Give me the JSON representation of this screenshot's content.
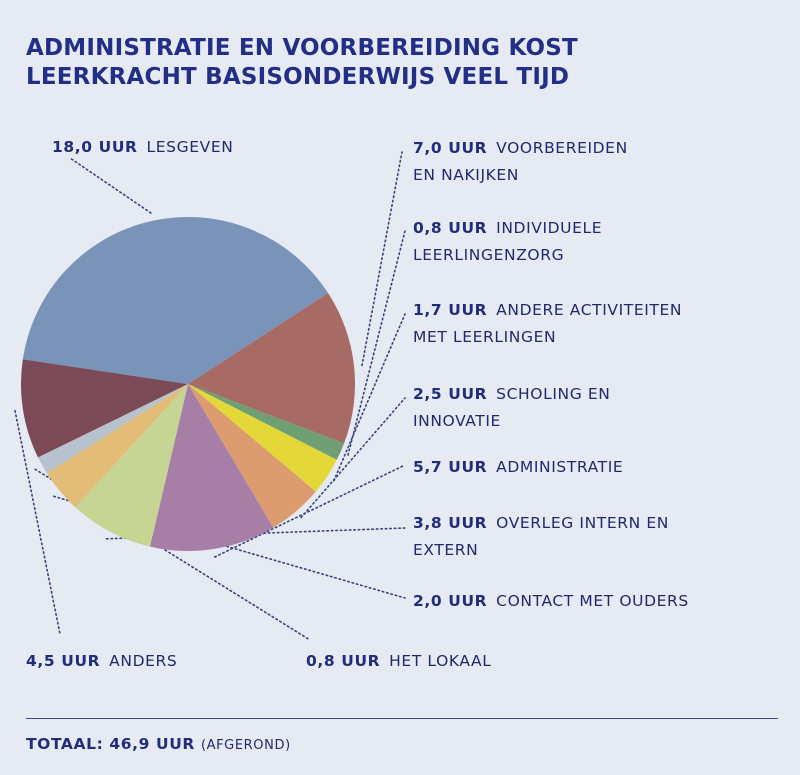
{
  "title": {
    "line1": "ADMINISTRATIE EN VOORBEREIDING KOST",
    "line2": "LEERKRACHT BASISONDERWIJS VEEL TIJD"
  },
  "chart_data": {
    "type": "pie",
    "unit": "UUR",
    "slices": [
      {
        "value_text": "7,0 UUR",
        "label": [
          "VOORBEREIDEN",
          "EN NAKIJKEN"
        ],
        "value": 7.0,
        "color": "#a86a65"
      },
      {
        "value_text": "0,8 UUR",
        "label": [
          "INDIVIDUELE",
          "LEERLINGENZORG"
        ],
        "value": 0.8,
        "color": "#6f9f72"
      },
      {
        "value_text": "1,7 UUR",
        "label": [
          "ANDERE ACTIVITEITEN",
          "MET LEERLINGEN"
        ],
        "value": 1.7,
        "color": "#e4d838"
      },
      {
        "value_text": "2,5 UUR",
        "label": [
          "SCHOLING EN",
          "INNOVATIE"
        ],
        "value": 2.5,
        "color": "#dc9c70"
      },
      {
        "value_text": "5,7 UUR",
        "label": [
          "ADMINISTRATIE"
        ],
        "value": 5.7,
        "color": "#a77fa6"
      },
      {
        "value_text": "3,8 UUR",
        "label": [
          "OVERLEG INTERN EN",
          "EXTERN"
        ],
        "value": 3.8,
        "color": "#c6d594"
      },
      {
        "value_text": "2,0 UUR",
        "label": [
          "CONTACT MET OUDERS"
        ],
        "value": 2.0,
        "color": "#e3bd78"
      },
      {
        "value_text": "0,8 UUR",
        "label": [
          "HET LOKAAL"
        ],
        "value": 0.8,
        "color": "#b8c2cf"
      },
      {
        "value_text": "4,5 UUR",
        "label": [
          "ANDERS"
        ],
        "value": 4.5,
        "color": "#7c4a57"
      },
      {
        "value_text": "18,0 UUR",
        "label": [
          "LESGEVEN"
        ],
        "value": 18.0,
        "color": "#7a93b9"
      }
    ]
  },
  "footer": {
    "label": "TOTAAL:",
    "value": "46,9 UUR",
    "note": "(AFGEROND)"
  }
}
